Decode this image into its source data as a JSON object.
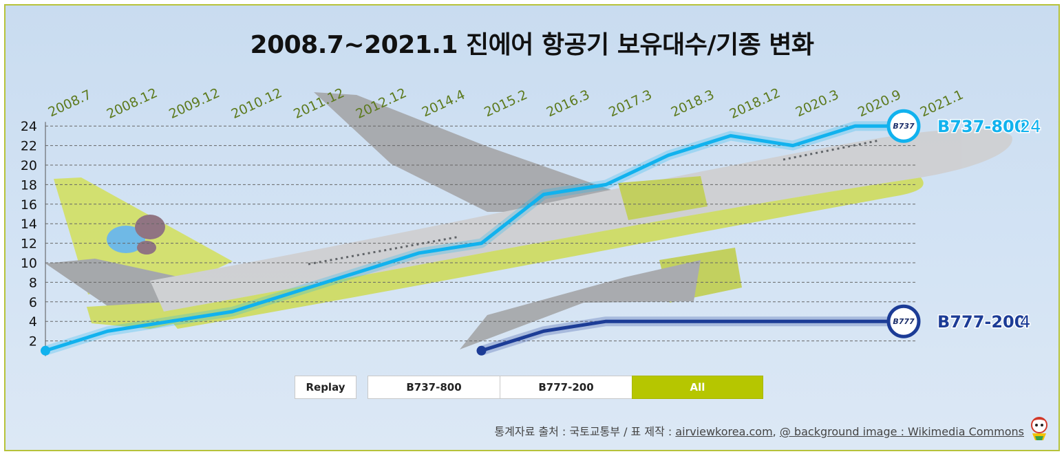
{
  "title": "2008.7~2021.1 진에어 항공기 보유대수/기종 변화",
  "chart_data": {
    "type": "line",
    "categories": [
      "2008.7",
      "2008.12",
      "2009.12",
      "2010.12",
      "2011.12",
      "2012.12",
      "2014.4",
      "2015.2",
      "2016.3",
      "2017.3",
      "2018.3",
      "2018.12",
      "2020.3",
      "2020.9",
      "2021.1"
    ],
    "yticks": [
      2,
      4,
      6,
      8,
      10,
      12,
      14,
      16,
      18,
      20,
      22,
      24
    ],
    "ylim": [
      0,
      24
    ],
    "grid": "horizontal dashed",
    "series": [
      {
        "name": "B737-800",
        "badge": "B737",
        "color": "#11b2ee",
        "values": [
          1,
          3,
          4,
          5,
          7,
          9,
          11,
          12,
          17,
          18,
          21,
          23,
          22,
          24,
          24
        ],
        "end_label": "B737-800",
        "end_value": "24"
      },
      {
        "name": "B777-200",
        "badge": "B777",
        "color": "#1c3c96",
        "values": [
          null,
          null,
          null,
          null,
          null,
          null,
          null,
          1,
          3,
          4,
          4,
          4,
          4,
          4,
          4
        ],
        "end_label": "B777-200",
        "end_value": "4"
      }
    ]
  },
  "controls": {
    "replay_label": "Replay",
    "filters": [
      "B737-800",
      "B777-200",
      "All"
    ],
    "active_filter": "All"
  },
  "source": {
    "prefix": "통계자료 출처 : 국토교통부 / 표 제작 : ",
    "link1": "airviewkorea.com",
    "sep": ", ",
    "link2": "@ background image : Wikimedia Commons"
  }
}
